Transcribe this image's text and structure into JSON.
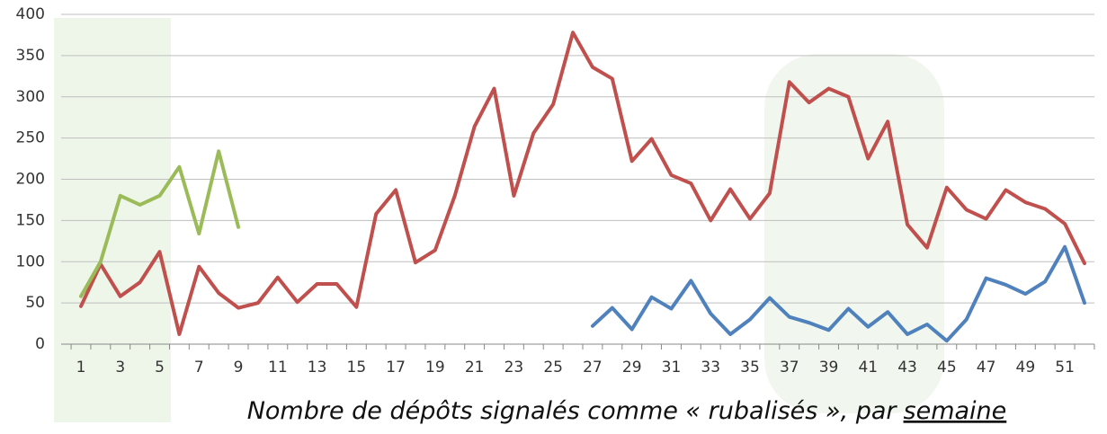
{
  "chart_data": {
    "type": "line",
    "xlabel": [
      "Nombre de dépôts signalés comme « rubalisés », par",
      "semaine"
    ],
    "categories": [
      1,
      null,
      3,
      null,
      5,
      null,
      7,
      null,
      9,
      null,
      11,
      null,
      13,
      null,
      15,
      null,
      17,
      null,
      19,
      null,
      21,
      null,
      23,
      null,
      25,
      null,
      27,
      null,
      29,
      null,
      31,
      null,
      33,
      null,
      35,
      null,
      37,
      null,
      39,
      null,
      41,
      null,
      43,
      null,
      45,
      null,
      47,
      null,
      49,
      null,
      51,
      null
    ],
    "series": [
      {
        "color": "#c0504d",
        "values": [
          46,
          97,
          58,
          75,
          112,
          12,
          94,
          62,
          44,
          50,
          81,
          51,
          73,
          73,
          45,
          158,
          187,
          99,
          114,
          180,
          264,
          310,
          180,
          256,
          291,
          378,
          336,
          322,
          222,
          249,
          205,
          195,
          150,
          188,
          152,
          183,
          318,
          293,
          310,
          300,
          225,
          270,
          145,
          117,
          190,
          163,
          152,
          187,
          172,
          164,
          146,
          98
        ]
      },
      {
        "color": "#4f81bd",
        "values": [
          null,
          null,
          null,
          null,
          null,
          null,
          null,
          null,
          null,
          null,
          null,
          null,
          null,
          null,
          null,
          null,
          null,
          null,
          null,
          null,
          null,
          null,
          null,
          null,
          null,
          null,
          22,
          44,
          18,
          57,
          43,
          77,
          37,
          12,
          30,
          56,
          33,
          26,
          17,
          43,
          21,
          39,
          12,
          24,
          4,
          30,
          80,
          72,
          61,
          76,
          118,
          50
        ]
      },
      {
        "color": "#9bbb59",
        "values": [
          58,
          100,
          180,
          169,
          180,
          215,
          134,
          234,
          142,
          null,
          null,
          null,
          null,
          null,
          null,
          null,
          null,
          null,
          null,
          null,
          null,
          null,
          null,
          null,
          null,
          null,
          null,
          null,
          null,
          null,
          null,
          null,
          null,
          null,
          null,
          null,
          null,
          null,
          null,
          null,
          null,
          null,
          null,
          null,
          null,
          null,
          null,
          null,
          null,
          null,
          null,
          null
        ]
      }
    ],
    "ylim": [
      0,
      400
    ],
    "yticks": [
      0,
      50,
      100,
      150,
      200,
      250,
      300,
      350,
      400
    ],
    "grid": true
  }
}
